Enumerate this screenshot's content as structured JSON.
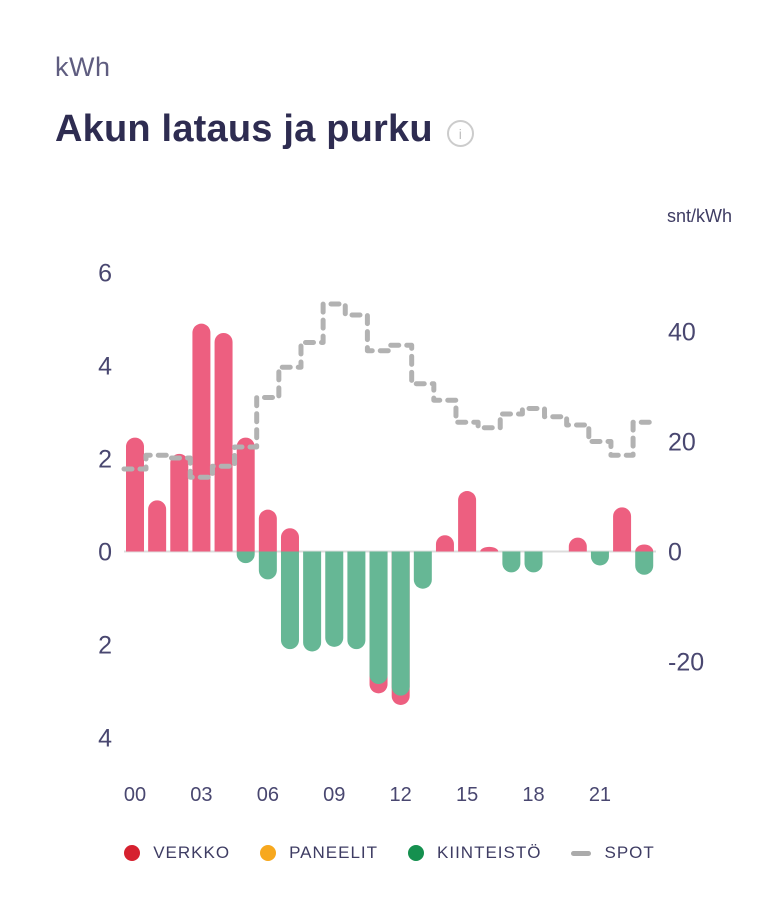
{
  "header": {
    "unit_label": "kWh",
    "title": "Akun lataus ja purku",
    "info_glyph": "i"
  },
  "axes": {
    "right_unit": "snt/kWh"
  },
  "legend": {
    "items": [
      {
        "key": "verkko",
        "label": "VERKKO",
        "color": "#d6212f",
        "shape": "dot"
      },
      {
        "key": "paneelit",
        "label": "PANEELIT",
        "color": "#f7a81e",
        "shape": "dot"
      },
      {
        "key": "kiinteisto",
        "label": "KIINTEISTÖ",
        "color": "#15904f",
        "shape": "dot"
      },
      {
        "key": "spot",
        "label": "SPOT",
        "color": "#ababab",
        "shape": "dash"
      }
    ]
  },
  "chart_data": {
    "type": "bar",
    "title": "Akun lataus ja purku",
    "categories": [
      "00",
      "01",
      "02",
      "03",
      "04",
      "05",
      "06",
      "07",
      "08",
      "09",
      "10",
      "11",
      "12",
      "13",
      "14",
      "15",
      "16",
      "17",
      "18",
      "19",
      "20",
      "21",
      "22",
      "23"
    ],
    "series": [
      {
        "name": "VERKKO",
        "type": "bar",
        "color": "#ed5f80",
        "axis": "left",
        "values": [
          2.45,
          1.1,
          2.1,
          4.9,
          4.7,
          2.45,
          0.9,
          0.5,
          0,
          0,
          0,
          -0.2,
          -0.2,
          0,
          0.35,
          1.3,
          0.1,
          0,
          0,
          0,
          0.3,
          0,
          0.95,
          0.15
        ]
      },
      {
        "name": "PANEELIT",
        "type": "bar",
        "color": "#f7a81e",
        "axis": "left",
        "values": [
          0,
          0,
          0,
          0,
          0,
          0,
          0,
          0,
          0,
          0,
          0,
          0,
          0,
          0,
          0,
          0,
          0,
          0,
          0,
          0,
          0,
          0,
          0,
          0
        ]
      },
      {
        "name": "KIINTEISTÖ",
        "type": "bar",
        "color": "#66b795",
        "axis": "left",
        "values": [
          0,
          0,
          0,
          0,
          0,
          -0.25,
          -0.6,
          -2.1,
          -2.15,
          -2.05,
          -2.1,
          -2.85,
          -3.1,
          -0.8,
          0,
          0,
          0,
          -0.45,
          -0.45,
          0,
          0,
          -0.3,
          0,
          -0.5
        ]
      },
      {
        "name": "SPOT",
        "type": "line",
        "color": "#b2b2b2",
        "axis": "right",
        "values": [
          15,
          17.5,
          17,
          13.5,
          15.5,
          19,
          28,
          33.5,
          38,
          45,
          43,
          36.5,
          37.5,
          30.5,
          27.5,
          23.5,
          22.5,
          25,
          26,
          24.5,
          23,
          20,
          17.5,
          23.5
        ]
      }
    ],
    "left_axis": {
      "label": "kWh",
      "ticks": [
        6,
        4,
        2,
        0,
        -2,
        -4
      ]
    },
    "right_axis": {
      "label": "snt/kWh",
      "ticks": [
        40,
        20,
        0,
        -20
      ]
    },
    "x_axis": {
      "tick_labels": [
        "00",
        "03",
        "06",
        "09",
        "12",
        "15",
        "18",
        "21"
      ]
    },
    "legend_position": "bottom",
    "grid": false
  }
}
